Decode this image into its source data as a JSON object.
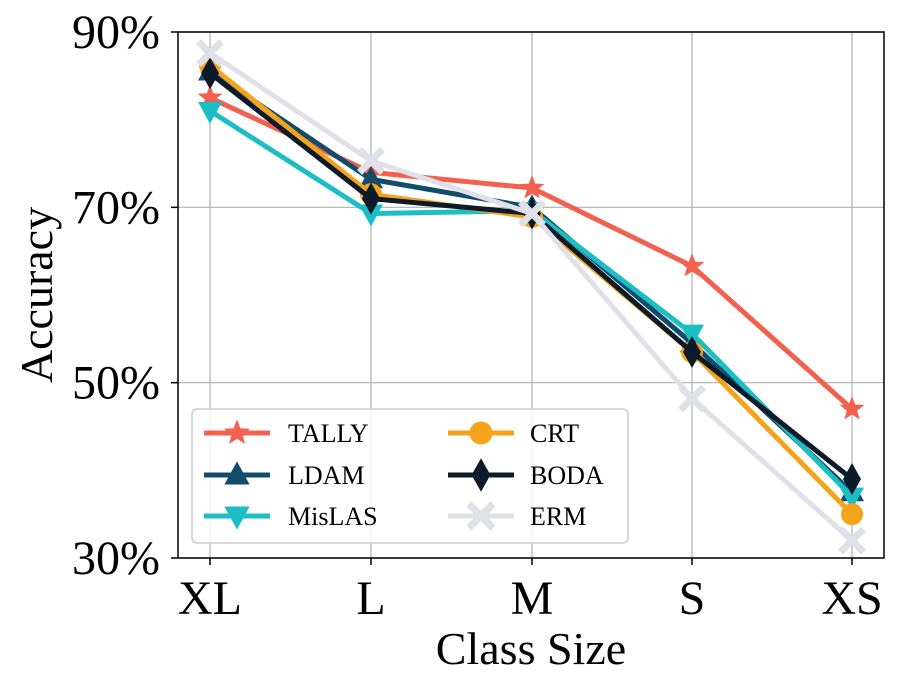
{
  "chart_data": {
    "type": "line",
    "title": "",
    "xlabel": "Class Size",
    "ylabel": "Accuracy",
    "categories": [
      "XL",
      "L",
      "M",
      "S",
      "XS"
    ],
    "ylim": [
      30,
      90
    ],
    "yticks": [
      30,
      50,
      70,
      90
    ],
    "ytick_labels": [
      "30%",
      "50%",
      "70%",
      "90%"
    ],
    "grid": true,
    "legend_position": "lower-left",
    "series": [
      {
        "name": "TALLY",
        "color": "#f2614f",
        "marker": "star",
        "values": [
          82.5,
          74.0,
          72.2,
          63.3,
          47.0
        ]
      },
      {
        "name": "LDAM",
        "color": "#124c6b",
        "marker": "triangle-up",
        "values": [
          85.5,
          73.2,
          70.0,
          54.5,
          37.5
        ]
      },
      {
        "name": "MisLAS",
        "color": "#1bbec4",
        "marker": "triangle-down",
        "values": [
          81.0,
          69.3,
          69.6,
          55.6,
          37.0
        ]
      },
      {
        "name": "CRT",
        "color": "#f5a31a",
        "marker": "circle",
        "values": [
          86.2,
          71.5,
          68.9,
          53.5,
          35.0
        ]
      },
      {
        "name": "BODA",
        "color": "#0c1a2a",
        "marker": "diamond",
        "values": [
          85.3,
          71.0,
          69.3,
          53.5,
          39.0
        ]
      },
      {
        "name": "ERM",
        "color": "#e0e0e8",
        "marker": "x",
        "values": [
          87.6,
          75.3,
          69.3,
          48.2,
          32.0
        ]
      }
    ]
  }
}
